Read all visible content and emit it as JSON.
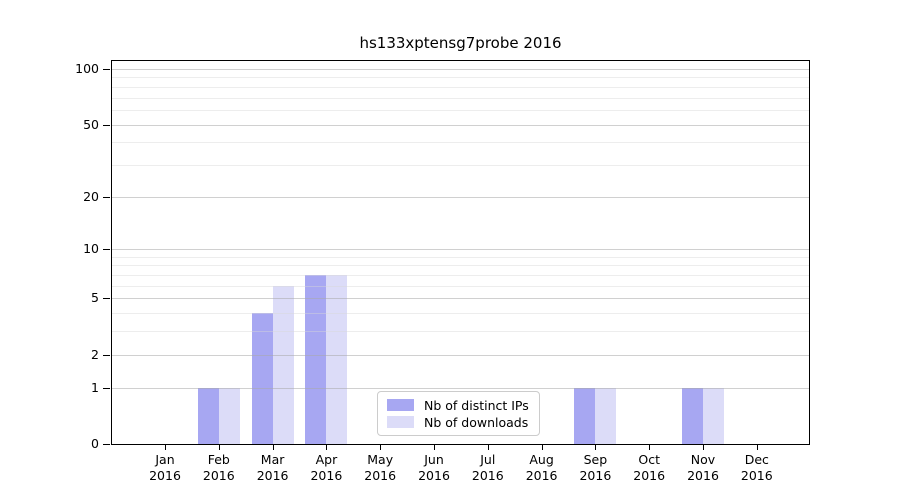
{
  "chart_data": {
    "type": "bar",
    "title": "hs133xptensg7probe 2016",
    "categories": [
      "Jan",
      "Feb",
      "Mar",
      "Apr",
      "May",
      "Jun",
      "Jul",
      "Aug",
      "Sep",
      "Oct",
      "Nov",
      "Dec"
    ],
    "category_year": "2016",
    "series": [
      {
        "name": "Nb of distinct IPs",
        "color": "#a7a7f2",
        "values": [
          0,
          1,
          4,
          7,
          0,
          0,
          0,
          0,
          1,
          0,
          1,
          0
        ]
      },
      {
        "name": "Nb of downloads",
        "color": "#dcdcf8",
        "values": [
          0,
          1,
          6,
          7,
          0,
          0,
          0,
          0,
          1,
          0,
          1,
          0
        ]
      }
    ],
    "yscale": "log(1+x)",
    "yticks": [
      0,
      1,
      2,
      5,
      10,
      20,
      50,
      100
    ],
    "minor_yticks": [
      3,
      4,
      6,
      7,
      8,
      9,
      30,
      40,
      60,
      70,
      80,
      90
    ],
    "ylim": [
      0,
      113
    ],
    "xlabel": "",
    "ylabel": "",
    "grid": true,
    "legend_position": "lower center"
  },
  "colors": {
    "bar_distinct_ips": "#a7a7f2",
    "bar_downloads": "#dcdcf8",
    "grid_major": "#aaaaaa",
    "grid_minor": "#d7d7d7",
    "axis_spine": "#000000",
    "legend_border": "#cccccc",
    "background": "#ffffff",
    "text": "#000000"
  }
}
